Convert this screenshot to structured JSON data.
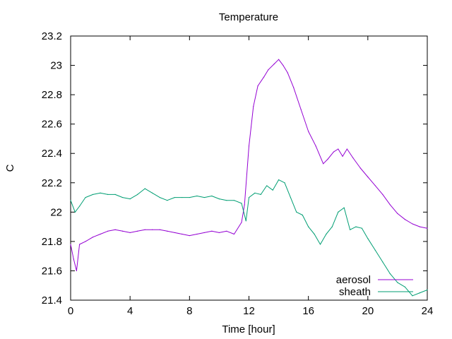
{
  "chart_data": {
    "type": "line",
    "title": "Temperature",
    "xlabel": "Time [hour]",
    "ylabel": "C",
    "xlim": [
      0,
      24
    ],
    "ylim": [
      21.4,
      23.2
    ],
    "xticks": [
      0,
      4,
      8,
      12,
      16,
      20,
      24
    ],
    "yticks": [
      21.4,
      21.6,
      21.8,
      22.0,
      22.2,
      22.4,
      22.6,
      22.8,
      23.0,
      23.2
    ],
    "ytick_labels": [
      "21.4",
      "21.6",
      "21.8",
      "22",
      "22.2",
      "22.4",
      "22.6",
      "22.8",
      "23",
      "23.2"
    ],
    "grid": false,
    "legend_position": "bottom-right",
    "series": [
      {
        "name": "aerosol",
        "color": "#9400d3",
        "x": [
          0,
          0.2,
          0.4,
          0.6,
          1,
          1.5,
          2,
          2.5,
          3,
          3.5,
          4,
          4.5,
          5,
          5.5,
          6,
          6.5,
          7,
          7.5,
          8,
          8.5,
          9,
          9.5,
          10,
          10.5,
          11,
          11.5,
          11.7,
          12,
          12.3,
          12.6,
          13,
          13.3,
          13.7,
          14,
          14.3,
          14.6,
          15,
          15.5,
          16,
          16.5,
          17,
          17.3,
          17.7,
          18,
          18.3,
          18.6,
          19,
          19.5,
          20,
          20.5,
          21,
          21.5,
          22,
          22.5,
          23,
          23.5,
          24
        ],
        "y": [
          21.78,
          21.68,
          21.6,
          21.78,
          21.8,
          21.83,
          21.85,
          21.87,
          21.88,
          21.87,
          21.86,
          21.87,
          21.88,
          21.88,
          21.88,
          21.87,
          21.86,
          21.85,
          21.84,
          21.85,
          21.86,
          21.87,
          21.86,
          21.87,
          21.85,
          21.93,
          22.05,
          22.45,
          22.72,
          22.86,
          22.92,
          22.97,
          23.01,
          23.04,
          23.0,
          22.95,
          22.85,
          22.7,
          22.55,
          22.45,
          22.33,
          22.36,
          22.41,
          22.43,
          22.38,
          22.43,
          22.37,
          22.3,
          22.24,
          22.18,
          22.12,
          22.05,
          21.99,
          21.95,
          21.92,
          21.9,
          21.89
        ]
      },
      {
        "name": "sheath",
        "color": "#009e73",
        "x": [
          0,
          0.3,
          0.6,
          1,
          1.5,
          2,
          2.5,
          3,
          3.5,
          4,
          4.5,
          5,
          5.5,
          6,
          6.5,
          7,
          7.5,
          8,
          8.5,
          9,
          9.5,
          10,
          10.5,
          11,
          11.5,
          11.8,
          12,
          12.4,
          12.8,
          13.2,
          13.6,
          14,
          14.4,
          14.8,
          15.2,
          15.6,
          16,
          16.4,
          16.8,
          17.2,
          17.6,
          18,
          18.4,
          18.8,
          19.2,
          19.6,
          20,
          20.5,
          21,
          21.5,
          22,
          22.5,
          23,
          23.5,
          24
        ],
        "y": [
          22.08,
          22.0,
          22.04,
          22.1,
          22.12,
          22.13,
          22.12,
          22.12,
          22.1,
          22.09,
          22.12,
          22.16,
          22.13,
          22.1,
          22.08,
          22.1,
          22.1,
          22.1,
          22.11,
          22.1,
          22.11,
          22.09,
          22.08,
          22.08,
          22.06,
          21.94,
          22.1,
          22.13,
          22.12,
          22.18,
          22.15,
          22.22,
          22.2,
          22.1,
          22.0,
          21.98,
          21.9,
          21.85,
          21.78,
          21.85,
          21.9,
          22.0,
          22.03,
          21.88,
          21.9,
          21.89,
          21.82,
          21.74,
          21.66,
          21.58,
          21.52,
          21.49,
          21.43,
          21.45,
          21.47
        ]
      }
    ]
  }
}
